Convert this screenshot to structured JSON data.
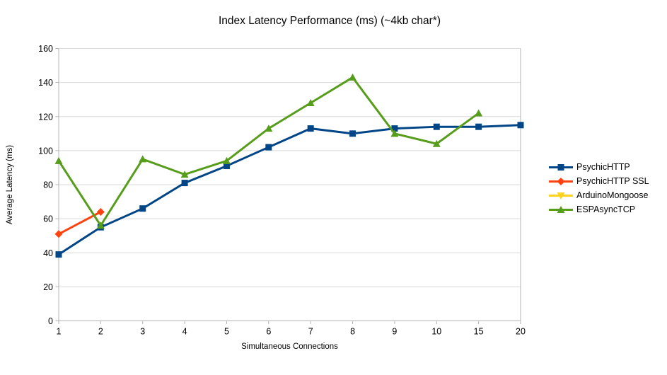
{
  "title": "Index Latency Performance (ms) (~4kb char*)",
  "chart_data": {
    "type": "line",
    "title": "Index Latency Performance (ms) (~4kb char*)",
    "xlabel": "Simultaneous Connections",
    "ylabel": "Average Latency (ms)",
    "categories": [
      "1",
      "2",
      "3",
      "4",
      "5",
      "6",
      "7",
      "8",
      "9",
      "10",
      "15",
      "20"
    ],
    "ylim": [
      0,
      160
    ],
    "ytick_step": 20,
    "grid": true,
    "legend_position": "right",
    "series": [
      {
        "name": "PsychicHTTP",
        "color": "#004586",
        "marker": "square",
        "values": [
          39,
          55,
          66,
          81,
          91,
          102,
          113,
          110,
          113,
          114,
          114,
          115
        ]
      },
      {
        "name": "PsychicHTTP SSL",
        "color": "#ff420e",
        "marker": "diamond",
        "values": [
          51,
          64,
          null,
          null,
          null,
          null,
          null,
          null,
          null,
          null,
          null,
          null
        ]
      },
      {
        "name": "ArduinoMongoose",
        "color": "#ffd320",
        "marker": "triangle-down",
        "values": [
          null,
          null,
          null,
          null,
          null,
          null,
          null,
          null,
          null,
          null,
          null,
          null
        ]
      },
      {
        "name": "ESPAsyncTCP",
        "color": "#579d1c",
        "marker": "triangle-up",
        "values": [
          94,
          56,
          95,
          86,
          94,
          113,
          128,
          143,
          110,
          104,
          122,
          null
        ]
      }
    ],
    "colors": {
      "background": "#ffffff",
      "gridline": "#d9d9d9",
      "axis": "#b3b3b3",
      "text": "#000000"
    }
  }
}
